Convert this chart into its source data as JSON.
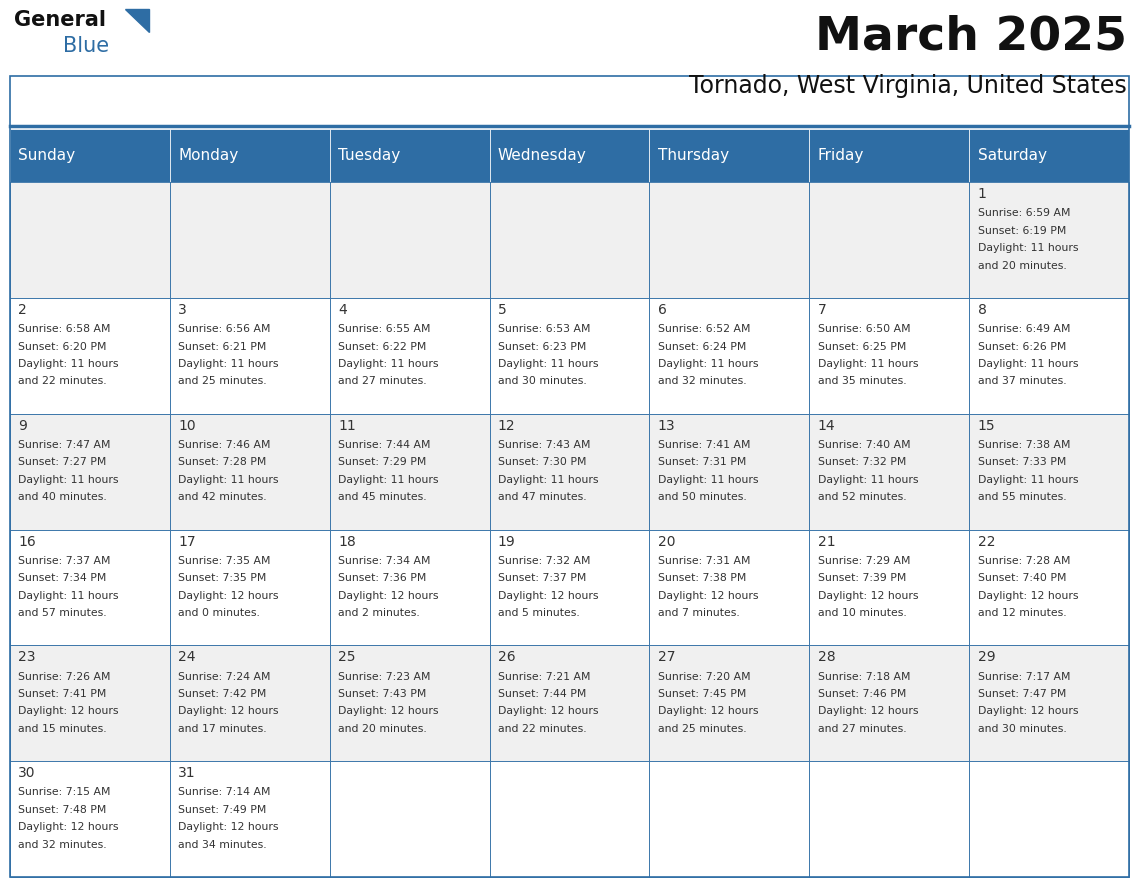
{
  "title": "March 2025",
  "subtitle": "Tornado, West Virginia, United States",
  "header_bg": "#2E6DA4",
  "header_text": "#FFFFFF",
  "day_names": [
    "Sunday",
    "Monday",
    "Tuesday",
    "Wednesday",
    "Thursday",
    "Friday",
    "Saturday"
  ],
  "odd_row_bg": "#F0F0F0",
  "even_row_bg": "#FFFFFF",
  "border_color": "#2E6DA4",
  "title_color": "#1a1a1a",
  "cell_text_color": "#333333",
  "days": [
    {
      "day": 1,
      "col": 6,
      "row": 0,
      "sunrise": "6:59 AM",
      "sunset": "6:19 PM",
      "daylight_h": "11 hours",
      "daylight_m": "and 20 minutes."
    },
    {
      "day": 2,
      "col": 0,
      "row": 1,
      "sunrise": "6:58 AM",
      "sunset": "6:20 PM",
      "daylight_h": "11 hours",
      "daylight_m": "and 22 minutes."
    },
    {
      "day": 3,
      "col": 1,
      "row": 1,
      "sunrise": "6:56 AM",
      "sunset": "6:21 PM",
      "daylight_h": "11 hours",
      "daylight_m": "and 25 minutes."
    },
    {
      "day": 4,
      "col": 2,
      "row": 1,
      "sunrise": "6:55 AM",
      "sunset": "6:22 PM",
      "daylight_h": "11 hours",
      "daylight_m": "and 27 minutes."
    },
    {
      "day": 5,
      "col": 3,
      "row": 1,
      "sunrise": "6:53 AM",
      "sunset": "6:23 PM",
      "daylight_h": "11 hours",
      "daylight_m": "and 30 minutes."
    },
    {
      "day": 6,
      "col": 4,
      "row": 1,
      "sunrise": "6:52 AM",
      "sunset": "6:24 PM",
      "daylight_h": "11 hours",
      "daylight_m": "and 32 minutes."
    },
    {
      "day": 7,
      "col": 5,
      "row": 1,
      "sunrise": "6:50 AM",
      "sunset": "6:25 PM",
      "daylight_h": "11 hours",
      "daylight_m": "and 35 minutes."
    },
    {
      "day": 8,
      "col": 6,
      "row": 1,
      "sunrise": "6:49 AM",
      "sunset": "6:26 PM",
      "daylight_h": "11 hours",
      "daylight_m": "and 37 minutes."
    },
    {
      "day": 9,
      "col": 0,
      "row": 2,
      "sunrise": "7:47 AM",
      "sunset": "7:27 PM",
      "daylight_h": "11 hours",
      "daylight_m": "and 40 minutes."
    },
    {
      "day": 10,
      "col": 1,
      "row": 2,
      "sunrise": "7:46 AM",
      "sunset": "7:28 PM",
      "daylight_h": "11 hours",
      "daylight_m": "and 42 minutes."
    },
    {
      "day": 11,
      "col": 2,
      "row": 2,
      "sunrise": "7:44 AM",
      "sunset": "7:29 PM",
      "daylight_h": "11 hours",
      "daylight_m": "and 45 minutes."
    },
    {
      "day": 12,
      "col": 3,
      "row": 2,
      "sunrise": "7:43 AM",
      "sunset": "7:30 PM",
      "daylight_h": "11 hours",
      "daylight_m": "and 47 minutes."
    },
    {
      "day": 13,
      "col": 4,
      "row": 2,
      "sunrise": "7:41 AM",
      "sunset": "7:31 PM",
      "daylight_h": "11 hours",
      "daylight_m": "and 50 minutes."
    },
    {
      "day": 14,
      "col": 5,
      "row": 2,
      "sunrise": "7:40 AM",
      "sunset": "7:32 PM",
      "daylight_h": "11 hours",
      "daylight_m": "and 52 minutes."
    },
    {
      "day": 15,
      "col": 6,
      "row": 2,
      "sunrise": "7:38 AM",
      "sunset": "7:33 PM",
      "daylight_h": "11 hours",
      "daylight_m": "and 55 minutes."
    },
    {
      "day": 16,
      "col": 0,
      "row": 3,
      "sunrise": "7:37 AM",
      "sunset": "7:34 PM",
      "daylight_h": "11 hours",
      "daylight_m": "and 57 minutes."
    },
    {
      "day": 17,
      "col": 1,
      "row": 3,
      "sunrise": "7:35 AM",
      "sunset": "7:35 PM",
      "daylight_h": "12 hours",
      "daylight_m": "and 0 minutes."
    },
    {
      "day": 18,
      "col": 2,
      "row": 3,
      "sunrise": "7:34 AM",
      "sunset": "7:36 PM",
      "daylight_h": "12 hours",
      "daylight_m": "and 2 minutes."
    },
    {
      "day": 19,
      "col": 3,
      "row": 3,
      "sunrise": "7:32 AM",
      "sunset": "7:37 PM",
      "daylight_h": "12 hours",
      "daylight_m": "and 5 minutes."
    },
    {
      "day": 20,
      "col": 4,
      "row": 3,
      "sunrise": "7:31 AM",
      "sunset": "7:38 PM",
      "daylight_h": "12 hours",
      "daylight_m": "and 7 minutes."
    },
    {
      "day": 21,
      "col": 5,
      "row": 3,
      "sunrise": "7:29 AM",
      "sunset": "7:39 PM",
      "daylight_h": "12 hours",
      "daylight_m": "and 10 minutes."
    },
    {
      "day": 22,
      "col": 6,
      "row": 3,
      "sunrise": "7:28 AM",
      "sunset": "7:40 PM",
      "daylight_h": "12 hours",
      "daylight_m": "and 12 minutes."
    },
    {
      "day": 23,
      "col": 0,
      "row": 4,
      "sunrise": "7:26 AM",
      "sunset": "7:41 PM",
      "daylight_h": "12 hours",
      "daylight_m": "and 15 minutes."
    },
    {
      "day": 24,
      "col": 1,
      "row": 4,
      "sunrise": "7:24 AM",
      "sunset": "7:42 PM",
      "daylight_h": "12 hours",
      "daylight_m": "and 17 minutes."
    },
    {
      "day": 25,
      "col": 2,
      "row": 4,
      "sunrise": "7:23 AM",
      "sunset": "7:43 PM",
      "daylight_h": "12 hours",
      "daylight_m": "and 20 minutes."
    },
    {
      "day": 26,
      "col": 3,
      "row": 4,
      "sunrise": "7:21 AM",
      "sunset": "7:44 PM",
      "daylight_h": "12 hours",
      "daylight_m": "and 22 minutes."
    },
    {
      "day": 27,
      "col": 4,
      "row": 4,
      "sunrise": "7:20 AM",
      "sunset": "7:45 PM",
      "daylight_h": "12 hours",
      "daylight_m": "and 25 minutes."
    },
    {
      "day": 28,
      "col": 5,
      "row": 4,
      "sunrise": "7:18 AM",
      "sunset": "7:46 PM",
      "daylight_h": "12 hours",
      "daylight_m": "and 27 minutes."
    },
    {
      "day": 29,
      "col": 6,
      "row": 4,
      "sunrise": "7:17 AM",
      "sunset": "7:47 PM",
      "daylight_h": "12 hours",
      "daylight_m": "and 30 minutes."
    },
    {
      "day": 30,
      "col": 0,
      "row": 5,
      "sunrise": "7:15 AM",
      "sunset": "7:48 PM",
      "daylight_h": "12 hours",
      "daylight_m": "and 32 minutes."
    },
    {
      "day": 31,
      "col": 1,
      "row": 5,
      "sunrise": "7:14 AM",
      "sunset": "7:49 PM",
      "daylight_h": "12 hours",
      "daylight_m": "and 34 minutes."
    }
  ],
  "num_rows": 6,
  "num_cols": 7
}
